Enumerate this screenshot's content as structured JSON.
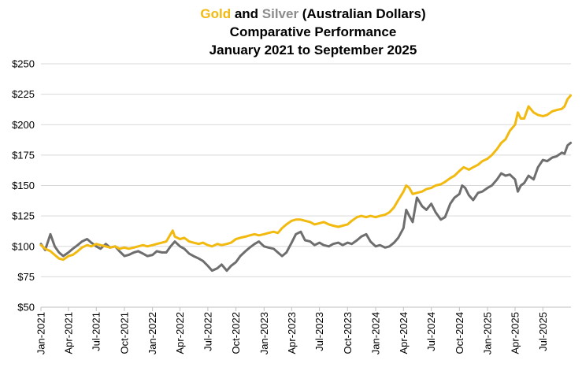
{
  "chart_data": {
    "type": "line",
    "title_parts": [
      {
        "text": "Gold",
        "color": "#f2b90f"
      },
      {
        "text": " and ",
        "color": "#000000"
      },
      {
        "text": "Silver",
        "color": "#8c8c8c"
      },
      {
        "text": " (Australian Dollars)",
        "color": "#000000"
      }
    ],
    "subtitle_lines": [
      "Comparative Performance",
      "January 2021 to September 2025"
    ],
    "ylim": [
      50,
      250
    ],
    "yticks": [
      50,
      75,
      100,
      125,
      150,
      175,
      200,
      225,
      250
    ],
    "ytick_labels": [
      "$50",
      "$75",
      "$100",
      "$125",
      "$150",
      "$175",
      "$200",
      "$225",
      "$250"
    ],
    "xlim": [
      "2021-01-01",
      "2025-10-01"
    ],
    "xticks": [
      "2021-01-01",
      "2021-04-01",
      "2021-07-01",
      "2021-10-01",
      "2022-01-01",
      "2022-04-01",
      "2022-07-01",
      "2022-10-01",
      "2023-01-01",
      "2023-04-01",
      "2023-07-01",
      "2023-10-01",
      "2024-01-01",
      "2024-04-01",
      "2024-07-01",
      "2024-10-01",
      "2025-01-01",
      "2025-04-01",
      "2025-07-01"
    ],
    "xtick_labels": [
      "Jan-2021",
      "Apr-2021",
      "Jul-2021",
      "Oct-2021",
      "Jan-2022",
      "Apr-2022",
      "Jul-2022",
      "Oct-2022",
      "Jan-2023",
      "Apr-2023",
      "Jul-2023",
      "Oct-2023",
      "Jan-2024",
      "Apr-2024",
      "Jul-2024",
      "Oct-2024",
      "Jan-2025",
      "Apr-2025",
      "Jul-2025"
    ],
    "grid": "horizontal",
    "series": [
      {
        "color": "#f2b90f",
        "x": [
          "2021-01-01",
          "2021-01-15",
          "2021-02-01",
          "2021-02-15",
          "2021-03-01",
          "2021-03-15",
          "2021-04-01",
          "2021-04-15",
          "2021-05-01",
          "2021-05-15",
          "2021-06-01",
          "2021-06-15",
          "2021-07-01",
          "2021-07-15",
          "2021-08-01",
          "2021-08-15",
          "2021-09-01",
          "2021-09-15",
          "2021-10-01",
          "2021-10-15",
          "2021-11-01",
          "2021-11-15",
          "2021-12-01",
          "2021-12-15",
          "2022-01-01",
          "2022-01-15",
          "2022-02-01",
          "2022-02-15",
          "2022-03-01",
          "2022-03-08",
          "2022-03-15",
          "2022-04-01",
          "2022-04-15",
          "2022-05-01",
          "2022-05-15",
          "2022-06-01",
          "2022-06-15",
          "2022-07-01",
          "2022-07-15",
          "2022-08-01",
          "2022-08-15",
          "2022-09-01",
          "2022-09-15",
          "2022-10-01",
          "2022-10-15",
          "2022-11-01",
          "2022-11-15",
          "2022-12-01",
          "2022-12-15",
          "2023-01-01",
          "2023-01-15",
          "2023-02-01",
          "2023-02-15",
          "2023-03-01",
          "2023-03-15",
          "2023-04-01",
          "2023-04-15",
          "2023-05-01",
          "2023-05-15",
          "2023-06-01",
          "2023-06-15",
          "2023-07-01",
          "2023-07-15",
          "2023-08-01",
          "2023-08-15",
          "2023-09-01",
          "2023-09-15",
          "2023-10-01",
          "2023-10-15",
          "2023-11-01",
          "2023-11-15",
          "2023-12-01",
          "2023-12-15",
          "2024-01-01",
          "2024-01-15",
          "2024-02-01",
          "2024-02-15",
          "2024-03-01",
          "2024-03-15",
          "2024-04-01",
          "2024-04-10",
          "2024-04-20",
          "2024-05-01",
          "2024-05-15",
          "2024-06-01",
          "2024-06-15",
          "2024-07-01",
          "2024-07-15",
          "2024-08-01",
          "2024-08-15",
          "2024-09-01",
          "2024-09-15",
          "2024-10-01",
          "2024-10-15",
          "2024-11-01",
          "2024-11-15",
          "2024-12-01",
          "2024-12-15",
          "2025-01-01",
          "2025-01-15",
          "2025-02-01",
          "2025-02-15",
          "2025-03-01",
          "2025-03-15",
          "2025-04-01",
          "2025-04-10",
          "2025-04-20",
          "2025-05-01",
          "2025-05-15",
          "2025-06-01",
          "2025-06-15",
          "2025-07-01",
          "2025-07-15",
          "2025-08-01",
          "2025-08-15",
          "2025-09-01",
          "2025-09-10",
          "2025-09-20",
          "2025-09-30"
        ],
        "values": [
          101,
          98,
          96,
          93,
          90,
          89,
          92,
          93,
          96,
          99,
          101,
          100,
          102,
          101,
          100,
          99,
          100,
          98,
          99,
          98,
          99,
          100,
          101,
          100,
          101,
          102,
          103,
          104,
          110,
          113,
          108,
          106,
          107,
          104,
          103,
          102,
          103,
          101,
          100,
          102,
          101,
          102,
          103,
          106,
          107,
          108,
          109,
          110,
          109,
          110,
          111,
          112,
          111,
          115,
          118,
          121,
          122,
          122,
          121,
          120,
          118,
          119,
          120,
          118,
          117,
          116,
          117,
          118,
          121,
          124,
          125,
          124,
          125,
          124,
          125,
          126,
          128,
          132,
          138,
          145,
          150,
          148,
          143,
          144,
          145,
          147,
          148,
          150,
          151,
          153,
          156,
          158,
          162,
          165,
          163,
          165,
          167,
          170,
          172,
          175,
          180,
          185,
          188,
          195,
          200,
          210,
          205,
          205,
          215,
          210,
          208,
          207,
          208,
          211,
          212,
          213,
          215,
          221,
          224
        ]
      },
      {
        "color": "#6e6e6e",
        "x": [
          "2021-01-01",
          "2021-01-15",
          "2021-02-01",
          "2021-02-15",
          "2021-03-01",
          "2021-03-15",
          "2021-04-01",
          "2021-04-15",
          "2021-05-01",
          "2021-05-15",
          "2021-06-01",
          "2021-06-15",
          "2021-07-01",
          "2021-07-15",
          "2021-08-01",
          "2021-08-15",
          "2021-09-01",
          "2021-09-15",
          "2021-10-01",
          "2021-10-15",
          "2021-11-01",
          "2021-11-15",
          "2021-12-01",
          "2021-12-15",
          "2022-01-01",
          "2022-01-15",
          "2022-02-01",
          "2022-02-15",
          "2022-03-01",
          "2022-03-15",
          "2022-04-01",
          "2022-04-15",
          "2022-05-01",
          "2022-05-15",
          "2022-06-01",
          "2022-06-15",
          "2022-07-01",
          "2022-07-15",
          "2022-08-01",
          "2022-08-15",
          "2022-09-01",
          "2022-09-15",
          "2022-10-01",
          "2022-10-15",
          "2022-11-01",
          "2022-11-15",
          "2022-12-01",
          "2022-12-15",
          "2023-01-01",
          "2023-01-15",
          "2023-02-01",
          "2023-02-15",
          "2023-03-01",
          "2023-03-15",
          "2023-04-01",
          "2023-04-15",
          "2023-05-01",
          "2023-05-15",
          "2023-06-01",
          "2023-06-15",
          "2023-07-01",
          "2023-07-15",
          "2023-08-01",
          "2023-08-15",
          "2023-09-01",
          "2023-09-15",
          "2023-10-01",
          "2023-10-15",
          "2023-11-01",
          "2023-11-15",
          "2023-12-01",
          "2023-12-15",
          "2024-01-01",
          "2024-01-15",
          "2024-02-01",
          "2024-02-15",
          "2024-03-01",
          "2024-03-15",
          "2024-04-01",
          "2024-04-10",
          "2024-04-20",
          "2024-05-01",
          "2024-05-15",
          "2024-06-01",
          "2024-06-15",
          "2024-07-01",
          "2024-07-15",
          "2024-08-01",
          "2024-08-15",
          "2024-09-01",
          "2024-09-15",
          "2024-10-01",
          "2024-10-10",
          "2024-10-20",
          "2024-11-01",
          "2024-11-15",
          "2024-12-01",
          "2024-12-15",
          "2025-01-01",
          "2025-01-15",
          "2025-02-01",
          "2025-02-15",
          "2025-03-01",
          "2025-03-15",
          "2025-04-01",
          "2025-04-10",
          "2025-04-20",
          "2025-05-01",
          "2025-05-15",
          "2025-06-01",
          "2025-06-15",
          "2025-07-01",
          "2025-07-15",
          "2025-08-01",
          "2025-08-15",
          "2025-09-01",
          "2025-09-10",
          "2025-09-20",
          "2025-09-30"
        ],
        "values": [
          102,
          97,
          110,
          100,
          95,
          92,
          95,
          98,
          101,
          104,
          106,
          103,
          100,
          98,
          102,
          99,
          100,
          96,
          92,
          93,
          95,
          96,
          94,
          92,
          93,
          96,
          95,
          95,
          100,
          104,
          100,
          98,
          94,
          92,
          90,
          88,
          84,
          80,
          82,
          85,
          80,
          84,
          87,
          92,
          96,
          99,
          102,
          104,
          100,
          99,
          98,
          95,
          92,
          95,
          103,
          110,
          112,
          105,
          104,
          101,
          103,
          101,
          100,
          102,
          103,
          101,
          103,
          102,
          105,
          108,
          110,
          104,
          100,
          101,
          99,
          100,
          103,
          107,
          115,
          130,
          125,
          120,
          140,
          133,
          130,
          135,
          128,
          122,
          124,
          135,
          140,
          143,
          150,
          148,
          142,
          138,
          144,
          145,
          148,
          150,
          155,
          160,
          158,
          159,
          155,
          145,
          150,
          152,
          158,
          155,
          165,
          171,
          170,
          173,
          174,
          177,
          176,
          183,
          185
        ]
      }
    ]
  }
}
